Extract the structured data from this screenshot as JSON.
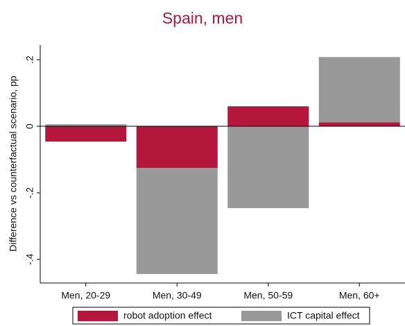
{
  "chart_data": {
    "type": "stacked-bar",
    "title": "Spain, men",
    "y_axis_label": "Difference vs counterfactual scenario, pp",
    "categories": [
      "Men, 20-29",
      "Men, 30-49",
      "Men, 50-59",
      "Men, 60+"
    ],
    "series": [
      {
        "name": "robot adoption effect",
        "color": "#b5173c",
        "values": [
          -0.046,
          -0.125,
          0.06,
          0.012
        ]
      },
      {
        "name": "ICT capital effect",
        "color": "#999999",
        "values": [
          0.006,
          -0.319,
          -0.246,
          0.196
        ]
      }
    ],
    "ylim": [
      -0.471,
      0.244
    ],
    "yticks": [
      {
        "value": -0.4,
        "label": "-.4"
      },
      {
        "value": -0.2,
        "label": "-.2"
      },
      0,
      {
        "value": 0.2,
        "label": ".2"
      }
    ],
    "zero_line": true
  }
}
